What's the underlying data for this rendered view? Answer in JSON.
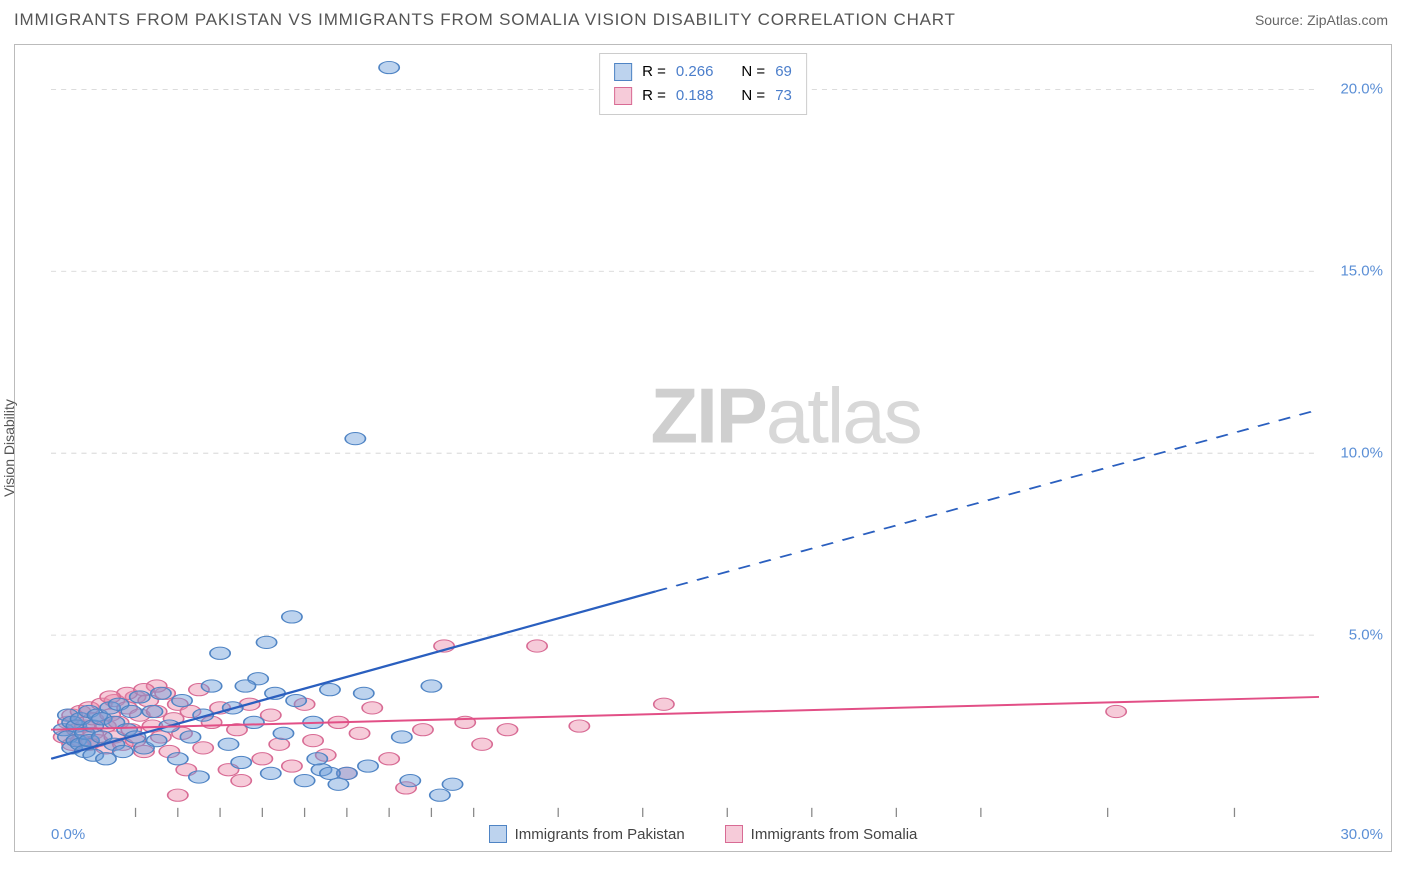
{
  "title": "IMMIGRANTS FROM PAKISTAN VS IMMIGRANTS FROM SOMALIA VISION DISABILITY CORRELATION CHART",
  "source": "Source: ZipAtlas.com",
  "yaxis_label": "Vision Disability",
  "watermark_zip": "ZIP",
  "watermark_atlas": "atlas",
  "chart": {
    "type": "scatter",
    "xlim": [
      0,
      30
    ],
    "ylim": [
      0,
      21
    ],
    "x_tick_min": "0.0%",
    "x_tick_max": "30.0%",
    "y_ticks": [
      {
        "v": 5,
        "label": "5.0%"
      },
      {
        "v": 10,
        "label": "10.0%"
      },
      {
        "v": 15,
        "label": "15.0%"
      },
      {
        "v": 20,
        "label": "20.0%"
      }
    ],
    "x_minor_ticks": [
      2,
      3,
      4,
      5,
      6,
      7,
      8,
      9,
      10,
      12,
      14,
      16,
      18,
      20,
      22,
      25,
      28
    ],
    "background_color": "#ffffff",
    "grid_color": "#d0d0d0",
    "marker_radius": 8,
    "marker_opacity": 0.45,
    "series_a": {
      "name": "Immigrants from Pakistan",
      "color": "#6d9ed9",
      "stroke": "#4f84c4",
      "line_color": "#2a5fbf",
      "R_label": "R =",
      "R": "0.266",
      "N_label": "N =",
      "N": "69",
      "trend": {
        "x1": 0,
        "y1": 1.6,
        "x2_solid": 14.3,
        "y2_solid": 6.2,
        "x2_dash": 30,
        "y2_dash": 11.2
      },
      "points": [
        [
          0.3,
          2.4
        ],
        [
          0.4,
          2.2
        ],
        [
          0.4,
          2.8
        ],
        [
          0.5,
          1.9
        ],
        [
          0.5,
          2.6
        ],
        [
          0.6,
          2.1
        ],
        [
          0.6,
          2.5
        ],
        [
          0.7,
          2.0
        ],
        [
          0.7,
          2.7
        ],
        [
          0.8,
          2.3
        ],
        [
          0.8,
          1.8
        ],
        [
          0.9,
          2.9
        ],
        [
          0.9,
          2.1
        ],
        [
          1.0,
          2.5
        ],
        [
          1.0,
          1.7
        ],
        [
          1.1,
          2.8
        ],
        [
          1.2,
          2.2
        ],
        [
          1.2,
          2.7
        ],
        [
          1.3,
          1.6
        ],
        [
          1.4,
          3.0
        ],
        [
          1.5,
          2.0
        ],
        [
          1.5,
          2.6
        ],
        [
          1.6,
          3.1
        ],
        [
          1.7,
          1.8
        ],
        [
          1.8,
          2.4
        ],
        [
          1.9,
          2.9
        ],
        [
          2.0,
          2.2
        ],
        [
          2.1,
          3.3
        ],
        [
          2.2,
          1.9
        ],
        [
          2.4,
          2.9
        ],
        [
          2.5,
          2.1
        ],
        [
          2.6,
          3.4
        ],
        [
          2.8,
          2.5
        ],
        [
          3.0,
          1.6
        ],
        [
          3.1,
          3.2
        ],
        [
          3.3,
          2.2
        ],
        [
          3.5,
          1.1
        ],
        [
          3.6,
          2.8
        ],
        [
          3.8,
          3.6
        ],
        [
          4.0,
          4.5
        ],
        [
          4.2,
          2.0
        ],
        [
          4.3,
          3.0
        ],
        [
          4.5,
          1.5
        ],
        [
          4.8,
          2.6
        ],
        [
          4.9,
          3.8
        ],
        [
          5.1,
          4.8
        ],
        [
          5.2,
          1.2
        ],
        [
          5.5,
          2.3
        ],
        [
          5.7,
          5.5
        ],
        [
          5.8,
          3.2
        ],
        [
          6.0,
          1.0
        ],
        [
          6.2,
          2.6
        ],
        [
          6.4,
          1.3
        ],
        [
          6.6,
          3.5
        ],
        [
          6.8,
          0.9
        ],
        [
          7.0,
          1.2
        ],
        [
          7.2,
          10.4
        ],
        [
          7.5,
          1.4
        ],
        [
          8.0,
          20.6
        ],
        [
          8.3,
          2.2
        ],
        [
          8.5,
          1.0
        ],
        [
          9.0,
          3.6
        ],
        [
          9.2,
          0.6
        ],
        [
          9.5,
          0.9
        ],
        [
          6.3,
          1.6
        ],
        [
          6.6,
          1.2
        ],
        [
          7.4,
          3.4
        ],
        [
          4.6,
          3.6
        ],
        [
          5.3,
          3.4
        ]
      ]
    },
    "series_b": {
      "name": "Immigrants from Somalia",
      "color": "#eb8caa",
      "stroke": "#d86b94",
      "line_color": "#e24f86",
      "R_label": "R =",
      "R": "0.188",
      "N_label": "N =",
      "N": "73",
      "trend": {
        "x1": 0,
        "y1": 2.4,
        "x2": 30,
        "y2": 3.3
      },
      "points": [
        [
          0.3,
          2.2
        ],
        [
          0.4,
          2.6
        ],
        [
          0.5,
          2.0
        ],
        [
          0.5,
          2.8
        ],
        [
          0.6,
          2.4
        ],
        [
          0.7,
          2.1
        ],
        [
          0.7,
          2.9
        ],
        [
          0.8,
          2.5
        ],
        [
          0.9,
          2.0
        ],
        [
          0.9,
          3.0
        ],
        [
          1.0,
          2.3
        ],
        [
          1.0,
          2.7
        ],
        [
          1.1,
          2.1
        ],
        [
          1.2,
          3.1
        ],
        [
          1.3,
          2.5
        ],
        [
          1.3,
          1.9
        ],
        [
          1.4,
          2.8
        ],
        [
          1.5,
          2.2
        ],
        [
          1.5,
          3.2
        ],
        [
          1.6,
          2.6
        ],
        [
          1.7,
          2.0
        ],
        [
          1.8,
          3.0
        ],
        [
          1.9,
          2.4
        ],
        [
          2.0,
          3.3
        ],
        [
          2.0,
          2.1
        ],
        [
          2.1,
          2.8
        ],
        [
          2.2,
          1.8
        ],
        [
          2.3,
          3.2
        ],
        [
          2.4,
          2.5
        ],
        [
          2.5,
          2.9
        ],
        [
          2.6,
          2.2
        ],
        [
          2.7,
          3.4
        ],
        [
          2.8,
          1.8
        ],
        [
          2.9,
          2.7
        ],
        [
          3.0,
          3.1
        ],
        [
          3.1,
          2.3
        ],
        [
          3.2,
          1.3
        ],
        [
          3.3,
          2.9
        ],
        [
          3.5,
          3.5
        ],
        [
          3.6,
          1.9
        ],
        [
          3.8,
          2.6
        ],
        [
          4.0,
          3.0
        ],
        [
          4.2,
          1.3
        ],
        [
          4.4,
          2.4
        ],
        [
          4.5,
          1.0
        ],
        [
          4.7,
          3.1
        ],
        [
          5.0,
          1.6
        ],
        [
          5.2,
          2.8
        ],
        [
          5.4,
          2.0
        ],
        [
          5.7,
          1.4
        ],
        [
          6.0,
          3.1
        ],
        [
          6.2,
          2.1
        ],
        [
          6.5,
          1.7
        ],
        [
          6.8,
          2.6
        ],
        [
          7.0,
          1.2
        ],
        [
          7.3,
          2.3
        ],
        [
          7.6,
          3.0
        ],
        [
          8.0,
          1.6
        ],
        [
          8.4,
          0.8
        ],
        [
          8.8,
          2.4
        ],
        [
          9.3,
          4.7
        ],
        [
          9.8,
          2.6
        ],
        [
          10.2,
          2.0
        ],
        [
          10.8,
          2.4
        ],
        [
          11.5,
          4.7
        ],
        [
          12.5,
          2.5
        ],
        [
          14.5,
          3.1
        ],
        [
          25.2,
          2.9
        ],
        [
          3.0,
          0.6
        ],
        [
          2.5,
          3.6
        ],
        [
          1.8,
          3.4
        ],
        [
          1.4,
          3.3
        ],
        [
          2.2,
          3.5
        ]
      ]
    }
  },
  "legend_bottom": {
    "a": "Immigrants from Pakistan",
    "b": "Immigrants from Somalia"
  }
}
